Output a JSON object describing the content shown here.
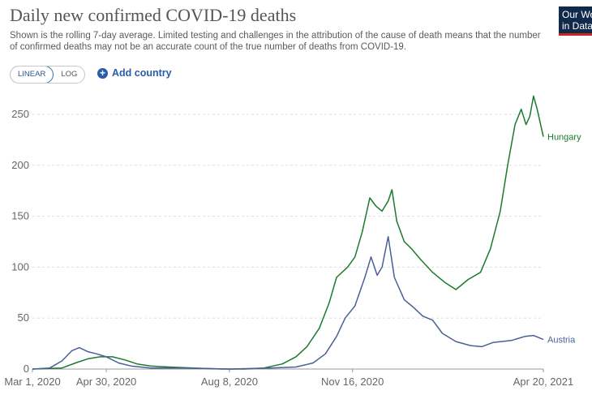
{
  "header": {
    "title": "Daily new confirmed COVID-19 deaths",
    "subtitle": "Shown is the rolling 7-day average. Limited testing and challenges in the attribution of the cause of death means that the number of confirmed deaths may not be an accurate count of the true number of deaths from COVID-19.",
    "logo_line1": "Our World",
    "logo_line2": "in Data"
  },
  "controls": {
    "linear_label": "LINEAR",
    "log_label": "LOG",
    "add_country_label": "Add country"
  },
  "colors": {
    "hungary": "#1b7a2e",
    "austria": "#4a5f96",
    "grid": "#dddddd",
    "tick_text": "#666666"
  },
  "chart_data": {
    "type": "line",
    "title": "Daily new confirmed COVID-19 deaths",
    "xlabel": "",
    "ylabel": "",
    "x_ticks": [
      "Mar 1, 2020",
      "Apr 30, 2020",
      "Aug 8, 2020",
      "Nov 16, 2020",
      "Apr 20, 2021"
    ],
    "y_ticks": [
      0,
      50,
      100,
      150,
      200,
      250
    ],
    "ylim": [
      0,
      270
    ],
    "xlim": [
      "2020-03-01",
      "2021-04-20"
    ],
    "grid": "horizontal dashed",
    "legend": "end-of-line labels",
    "series": [
      {
        "name": "Hungary",
        "points": [
          [
            "2020-03-01",
            0
          ],
          [
            "2020-03-25",
            1
          ],
          [
            "2020-04-05",
            6
          ],
          [
            "2020-04-15",
            10
          ],
          [
            "2020-04-25",
            12
          ],
          [
            "2020-05-05",
            12
          ],
          [
            "2020-05-15",
            9
          ],
          [
            "2020-05-25",
            5
          ],
          [
            "2020-06-05",
            3
          ],
          [
            "2020-06-20",
            2
          ],
          [
            "2020-07-10",
            1
          ],
          [
            "2020-08-01",
            0
          ],
          [
            "2020-08-20",
            0
          ],
          [
            "2020-09-05",
            1
          ],
          [
            "2020-09-20",
            5
          ],
          [
            "2020-10-01",
            12
          ],
          [
            "2020-10-10",
            22
          ],
          [
            "2020-10-20",
            40
          ],
          [
            "2020-10-28",
            65
          ],
          [
            "2020-11-03",
            90
          ],
          [
            "2020-11-12",
            100
          ],
          [
            "2020-11-18",
            110
          ],
          [
            "2020-11-24",
            135
          ],
          [
            "2020-11-30",
            168
          ],
          [
            "2020-12-05",
            160
          ],
          [
            "2020-12-10",
            155
          ],
          [
            "2020-12-15",
            165
          ],
          [
            "2020-12-18",
            176
          ],
          [
            "2020-12-22",
            145
          ],
          [
            "2020-12-28",
            125
          ],
          [
            "2021-01-03",
            118
          ],
          [
            "2021-01-10",
            108
          ],
          [
            "2021-01-20",
            95
          ],
          [
            "2021-01-30",
            85
          ],
          [
            "2021-02-08",
            78
          ],
          [
            "2021-02-18",
            88
          ],
          [
            "2021-02-28",
            95
          ],
          [
            "2021-03-08",
            118
          ],
          [
            "2021-03-16",
            155
          ],
          [
            "2021-03-22",
            200
          ],
          [
            "2021-03-28",
            240
          ],
          [
            "2021-04-02",
            255
          ],
          [
            "2021-04-06",
            240
          ],
          [
            "2021-04-09",
            248
          ],
          [
            "2021-04-12",
            268
          ],
          [
            "2021-04-15",
            255
          ],
          [
            "2021-04-20",
            228
          ]
        ]
      },
      {
        "name": "Austria",
        "points": [
          [
            "2020-03-01",
            0
          ],
          [
            "2020-03-15",
            1
          ],
          [
            "2020-03-25",
            8
          ],
          [
            "2020-04-02",
            18
          ],
          [
            "2020-04-08",
            21
          ],
          [
            "2020-04-15",
            17
          ],
          [
            "2020-04-22",
            15
          ],
          [
            "2020-04-30",
            12
          ],
          [
            "2020-05-10",
            6
          ],
          [
            "2020-05-20",
            3
          ],
          [
            "2020-06-05",
            1
          ],
          [
            "2020-07-01",
            1
          ],
          [
            "2020-08-08",
            0
          ],
          [
            "2020-09-10",
            1
          ],
          [
            "2020-10-01",
            2
          ],
          [
            "2020-10-15",
            6
          ],
          [
            "2020-10-25",
            15
          ],
          [
            "2020-11-03",
            32
          ],
          [
            "2020-11-10",
            50
          ],
          [
            "2020-11-18",
            62
          ],
          [
            "2020-11-26",
            90
          ],
          [
            "2020-12-01",
            110
          ],
          [
            "2020-12-06",
            92
          ],
          [
            "2020-12-10",
            100
          ],
          [
            "2020-12-15",
            130
          ],
          [
            "2020-12-20",
            90
          ],
          [
            "2020-12-28",
            68
          ],
          [
            "2021-01-05",
            60
          ],
          [
            "2021-01-12",
            52
          ],
          [
            "2021-01-20",
            48
          ],
          [
            "2021-01-28",
            35
          ],
          [
            "2021-02-08",
            27
          ],
          [
            "2021-02-20",
            23
          ],
          [
            "2021-03-01",
            22
          ],
          [
            "2021-03-10",
            26
          ],
          [
            "2021-03-25",
            28
          ],
          [
            "2021-04-05",
            32
          ],
          [
            "2021-04-12",
            33
          ],
          [
            "2021-04-20",
            29
          ]
        ]
      }
    ]
  }
}
